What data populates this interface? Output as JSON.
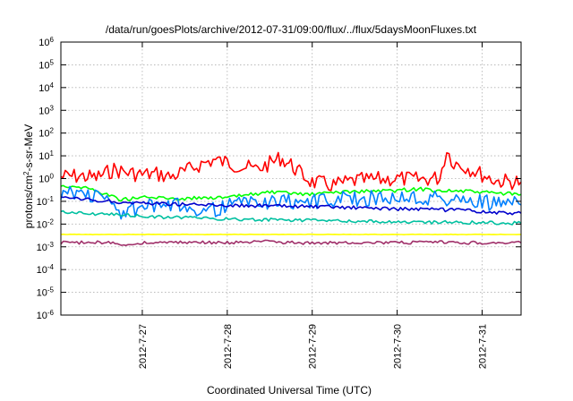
{
  "chart_data": {
    "type": "line",
    "title": "/data/run/goesPlots/archive/2012-07-31/09:00/flux/../flux/5daysMoonFluxes.txt",
    "xlabel": "Coordinated Universal Time (UTC)",
    "ylabel": "protons/cm2-s-sr-MeV",
    "ylabel_parts": {
      "base": "protons/cm",
      "sup": "2",
      "rest": "-s-sr-MeV"
    },
    "y_scale": "log",
    "ylim_exp": [
      -6,
      6
    ],
    "ytick_labels": [
      {
        "base": "10",
        "exp": "-6"
      },
      {
        "base": "10",
        "exp": "-5"
      },
      {
        "base": "10",
        "exp": "-4"
      },
      {
        "base": "10",
        "exp": "-3"
      },
      {
        "base": "10",
        "exp": "-2"
      },
      {
        "base": "10",
        "exp": "-1"
      },
      {
        "base": "10",
        "exp": "0"
      },
      {
        "base": "10",
        "exp": "1"
      },
      {
        "base": "10",
        "exp": "2"
      },
      {
        "base": "10",
        "exp": "3"
      },
      {
        "base": "10",
        "exp": "4"
      },
      {
        "base": "10",
        "exp": "5"
      },
      {
        "base": "10",
        "exp": "6"
      }
    ],
    "xlim": [
      "2012-07-26 01:00",
      "2012-07-31 11:00"
    ],
    "xtick_labels": [
      "2012-7-27",
      "2012-7-28",
      "2012-7-29",
      "2012-7-30",
      "2012-7-31"
    ],
    "xtick_dates": [
      "2012-07-27",
      "2012-07-28",
      "2012-07-29",
      "2012-07-30",
      "2012-07-31"
    ],
    "grid": true,
    "series": [
      {
        "color": "#ff0000",
        "points": [
          [
            "2012-07-26 01:00",
            1.2
          ],
          [
            "2012-07-26 06:00",
            1.3
          ],
          [
            "2012-07-26 11:00",
            1.1
          ],
          [
            "2012-07-26 16:00",
            2.5
          ],
          [
            "2012-07-26 20:00",
            1.8
          ],
          [
            "2012-07-27 00:00",
            1.5
          ],
          [
            "2012-07-27 04:00",
            1.6
          ],
          [
            "2012-07-27 08:00",
            1.2
          ],
          [
            "2012-07-27 12:00",
            2.0
          ],
          [
            "2012-07-27 16:00",
            4.0
          ],
          [
            "2012-07-27 20:00",
            6.5
          ],
          [
            "2012-07-28 00:00",
            5.0
          ],
          [
            "2012-07-28 04:00",
            3.5
          ],
          [
            "2012-07-28 08:00",
            2.5
          ],
          [
            "2012-07-28 12:00",
            4.5
          ],
          [
            "2012-07-28 15:00",
            8.0
          ],
          [
            "2012-07-28 18:00",
            4.0
          ],
          [
            "2012-07-28 21:00",
            1.5
          ],
          [
            "2012-07-29 00:00",
            0.7
          ],
          [
            "2012-07-29 06:00",
            0.5
          ],
          [
            "2012-07-29 12:00",
            0.8
          ],
          [
            "2012-07-29 18:00",
            0.9
          ],
          [
            "2012-07-30 00:00",
            1.0
          ],
          [
            "2012-07-30 06:00",
            0.9
          ],
          [
            "2012-07-30 12:00",
            1.1
          ],
          [
            "2012-07-30 14:00",
            18.0
          ],
          [
            "2012-07-30 16:00",
            5.0
          ],
          [
            "2012-07-30 20:00",
            3.0
          ],
          [
            "2012-07-31 00:00",
            1.5
          ],
          [
            "2012-07-31 04:00",
            0.8
          ],
          [
            "2012-07-31 11:00",
            0.7
          ]
        ]
      },
      {
        "color": "#00ff00",
        "points": [
          [
            "2012-07-26 01:00",
            0.5
          ],
          [
            "2012-07-26 08:00",
            0.4
          ],
          [
            "2012-07-26 14:00",
            0.2
          ],
          [
            "2012-07-26 18:00",
            0.12
          ],
          [
            "2012-07-27 00:00",
            0.15
          ],
          [
            "2012-07-27 06:00",
            0.14
          ],
          [
            "2012-07-27 12:00",
            0.13
          ],
          [
            "2012-07-27 18:00",
            0.15
          ],
          [
            "2012-07-28 00:00",
            0.14
          ],
          [
            "2012-07-28 06:00",
            0.2
          ],
          [
            "2012-07-28 12:00",
            0.25
          ],
          [
            "2012-07-28 18:00",
            0.22
          ],
          [
            "2012-07-29 00:00",
            0.2
          ],
          [
            "2012-07-29 06:00",
            0.25
          ],
          [
            "2012-07-29 12:00",
            0.27
          ],
          [
            "2012-07-29 18:00",
            0.28
          ],
          [
            "2012-07-30 00:00",
            0.3
          ],
          [
            "2012-07-30 06:00",
            0.35
          ],
          [
            "2012-07-30 12:00",
            0.3
          ],
          [
            "2012-07-30 18:00",
            0.28
          ],
          [
            "2012-07-31 00:00",
            0.25
          ],
          [
            "2012-07-31 06:00",
            0.22
          ],
          [
            "2012-07-31 11:00",
            0.2
          ]
        ]
      },
      {
        "color": "#0080ff",
        "points": [
          [
            "2012-07-26 01:00",
            0.25
          ],
          [
            "2012-07-26 08:00",
            0.22
          ],
          [
            "2012-07-26 14:00",
            0.12
          ],
          [
            "2012-07-26 18:00",
            0.03
          ],
          [
            "2012-07-27 00:00",
            0.06
          ],
          [
            "2012-07-27 06:00",
            0.05
          ],
          [
            "2012-07-27 12:00",
            0.07
          ],
          [
            "2012-07-27 18:00",
            0.04
          ],
          [
            "2012-07-28 00:00",
            0.06
          ],
          [
            "2012-07-28 06:00",
            0.1
          ],
          [
            "2012-07-28 12:00",
            0.09
          ],
          [
            "2012-07-28 18:00",
            0.1
          ],
          [
            "2012-07-29 00:00",
            0.1
          ],
          [
            "2012-07-29 06:00",
            0.12
          ],
          [
            "2012-07-29 12:00",
            0.13
          ],
          [
            "2012-07-29 18:00",
            0.14
          ],
          [
            "2012-07-30 00:00",
            0.15
          ],
          [
            "2012-07-30 06:00",
            0.15
          ],
          [
            "2012-07-30 12:00",
            0.13
          ],
          [
            "2012-07-30 18:00",
            0.11
          ],
          [
            "2012-07-31 00:00",
            0.09
          ],
          [
            "2012-07-31 06:00",
            0.08
          ],
          [
            "2012-07-31 11:00",
            0.07
          ]
        ]
      },
      {
        "color": "#0000cc",
        "points": [
          [
            "2012-07-26 01:00",
            0.14
          ],
          [
            "2012-07-26 08:00",
            0.12
          ],
          [
            "2012-07-26 14:00",
            0.1
          ],
          [
            "2012-07-26 20:00",
            0.09
          ],
          [
            "2012-07-27 06:00",
            0.08
          ],
          [
            "2012-07-27 12:00",
            0.075
          ],
          [
            "2012-07-27 18:00",
            0.07
          ],
          [
            "2012-07-28 06:00",
            0.065
          ],
          [
            "2012-07-28 18:00",
            0.06
          ],
          [
            "2012-07-29 06:00",
            0.055
          ],
          [
            "2012-07-29 18:00",
            0.05
          ],
          [
            "2012-07-30 06:00",
            0.045
          ],
          [
            "2012-07-30 18:00",
            0.04
          ],
          [
            "2012-07-31 06:00",
            0.03
          ],
          [
            "2012-07-31 11:00",
            0.03
          ]
        ]
      },
      {
        "color": "#00c0a0",
        "points": [
          [
            "2012-07-26 01:00",
            0.035
          ],
          [
            "2012-07-26 08:00",
            0.03
          ],
          [
            "2012-07-26 14:00",
            0.027
          ],
          [
            "2012-07-26 20:00",
            0.024
          ],
          [
            "2012-07-27 06:00",
            0.02
          ],
          [
            "2012-07-27 18:00",
            0.018
          ],
          [
            "2012-07-28 06:00",
            0.016
          ],
          [
            "2012-07-28 18:00",
            0.015
          ],
          [
            "2012-07-29 06:00",
            0.014
          ],
          [
            "2012-07-29 18:00",
            0.013
          ],
          [
            "2012-07-30 06:00",
            0.012
          ],
          [
            "2012-07-30 18:00",
            0.012
          ],
          [
            "2012-07-31 06:00",
            0.011
          ],
          [
            "2012-07-31 11:00",
            0.011
          ]
        ]
      },
      {
        "color": "#ffff00",
        "points": [
          [
            "2012-07-26 01:00",
            0.0035
          ],
          [
            "2012-07-27 00:00",
            0.0035
          ],
          [
            "2012-07-28 00:00",
            0.0035
          ],
          [
            "2012-07-29 00:00",
            0.0035
          ],
          [
            "2012-07-30 00:00",
            0.0035
          ],
          [
            "2012-07-31 00:00",
            0.0035
          ],
          [
            "2012-07-31 11:00",
            0.0035
          ]
        ]
      },
      {
        "color": "#a0306a",
        "points": [
          [
            "2012-07-26 01:00",
            0.0015
          ],
          [
            "2012-07-26 12:00",
            0.0016
          ],
          [
            "2012-07-26 20:00",
            0.0012
          ],
          [
            "2012-07-27 00:00",
            0.0015
          ],
          [
            "2012-07-27 12:00",
            0.0016
          ],
          [
            "2012-07-28 00:00",
            0.0015
          ],
          [
            "2012-07-28 12:00",
            0.0017
          ],
          [
            "2012-07-29 00:00",
            0.0014
          ],
          [
            "2012-07-29 12:00",
            0.0016
          ],
          [
            "2012-07-30 00:00",
            0.0015
          ],
          [
            "2012-07-30 12:00",
            0.0016
          ],
          [
            "2012-07-31 00:00",
            0.0015
          ],
          [
            "2012-07-31 11:00",
            0.0015
          ]
        ]
      }
    ]
  }
}
